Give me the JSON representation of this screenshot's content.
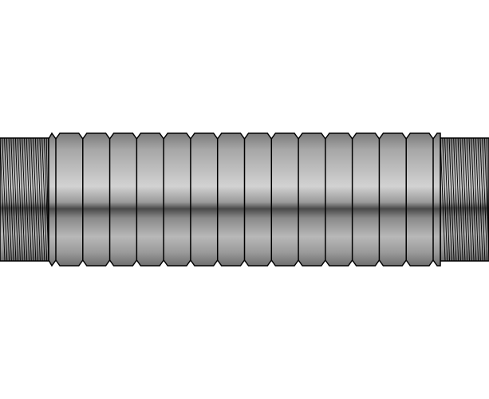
{
  "figure": {
    "subject": "corrugated-hose-fitting",
    "background_color": "#ffffff",
    "outline_color": "#000000",
    "corrugation_count": 15,
    "end_thread_count_left": 22,
    "end_thread_count_right": 22,
    "metal_gradient": [
      "#7a7a7a",
      "#a6a6a6",
      "#d2d2d2",
      "#9a9a9a",
      "#4a4a4a",
      "#8a8a8a",
      "#b8b8b8",
      "#9a9a9a",
      "#6e6e6e"
    ]
  }
}
